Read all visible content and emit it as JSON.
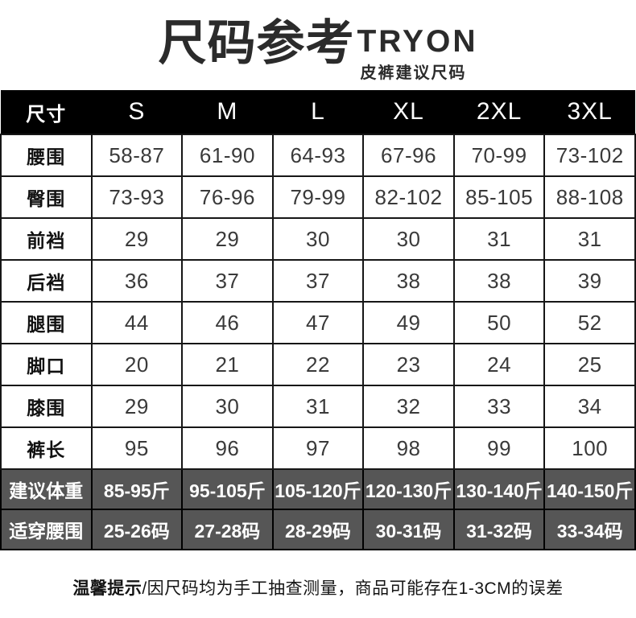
{
  "header": {
    "title": "尺码参考",
    "brand": "TRYON",
    "subtitle": "皮裤建议尺码"
  },
  "colors": {
    "header_bg": "#000000",
    "highlight_row_bg": "#565656",
    "title_text": "#2b2b2b",
    "body_text": "#3a3a3a",
    "highlight_text": "#ffffff"
  },
  "chart_data": {
    "type": "table",
    "title": "尺码参考 TRYON 皮裤建议尺码",
    "columns": [
      "尺寸",
      "S",
      "M",
      "L",
      "XL",
      "2XL",
      "3XL"
    ],
    "rows": [
      {
        "label": "腰围",
        "values": [
          "58-87",
          "61-90",
          "64-93",
          "67-96",
          "70-99",
          "73-102"
        ]
      },
      {
        "label": "臀围",
        "values": [
          "73-93",
          "76-96",
          "79-99",
          "82-102",
          "85-105",
          "88-108"
        ]
      },
      {
        "label": "前裆",
        "values": [
          "29",
          "29",
          "30",
          "30",
          "31",
          "31"
        ]
      },
      {
        "label": "后裆",
        "values": [
          "36",
          "37",
          "37",
          "38",
          "38",
          "39"
        ]
      },
      {
        "label": "腿围",
        "values": [
          "44",
          "46",
          "47",
          "49",
          "50",
          "52"
        ]
      },
      {
        "label": "脚口",
        "values": [
          "20",
          "21",
          "22",
          "23",
          "24",
          "25"
        ]
      },
      {
        "label": "膝围",
        "values": [
          "29",
          "30",
          "31",
          "32",
          "33",
          "34"
        ]
      },
      {
        "label": "裤长",
        "values": [
          "95",
          "96",
          "97",
          "98",
          "99",
          "100"
        ]
      }
    ],
    "highlight_rows": [
      {
        "label": "建议体重",
        "values": [
          "85-95斤",
          "95-105斤",
          "105-120斤",
          "120-130斤",
          "130-140斤",
          "140-150斤"
        ]
      },
      {
        "label": "适穿腰围",
        "values": [
          "25-26码",
          "27-28码",
          "28-29码",
          "30-31码",
          "31-32码",
          "33-34码"
        ]
      }
    ],
    "layout": {
      "header_style": "black-bar",
      "highlight_rows_position": "bottom",
      "grid": true
    }
  },
  "footer": {
    "tip_label": "温馨提示",
    "tip_text": "/因尺码均为手工抽查测量，商品可能存在1-3CM的误差"
  }
}
